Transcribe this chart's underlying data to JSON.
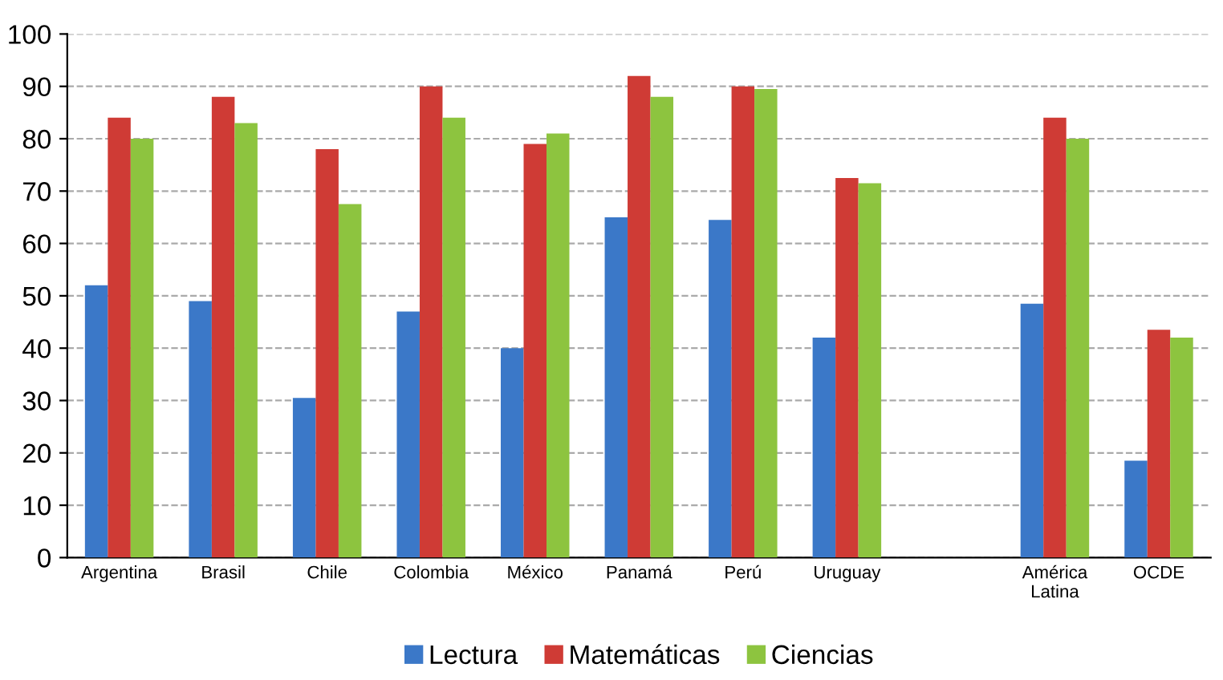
{
  "chart_data": {
    "type": "bar",
    "categories": [
      "Argentina",
      "Brasil",
      "Chile",
      "Colombia",
      "México",
      "Panamá",
      "Perú",
      "Uruguay",
      null,
      "América\nLatina",
      "OCDE"
    ],
    "series": [
      {
        "name": "Lectura",
        "color": "#3b78c8",
        "values": [
          52,
          49,
          30.5,
          47,
          40,
          65,
          64.5,
          42,
          null,
          48.5,
          18.5
        ]
      },
      {
        "name": "Matemáticas",
        "color": "#cf3b35",
        "values": [
          84,
          88,
          78,
          90,
          79,
          92,
          90,
          72.5,
          null,
          84,
          43.5
        ]
      },
      {
        "name": "Ciencias",
        "color": "#8dc43f",
        "values": [
          80,
          83,
          67.5,
          84,
          81,
          88,
          89.5,
          71.5,
          null,
          80,
          42
        ]
      }
    ],
    "ylim": [
      0,
      100
    ],
    "yticks": [
      0,
      10,
      20,
      30,
      40,
      50,
      60,
      70,
      80,
      90,
      100
    ],
    "grid": "y",
    "legend": "bottom"
  }
}
